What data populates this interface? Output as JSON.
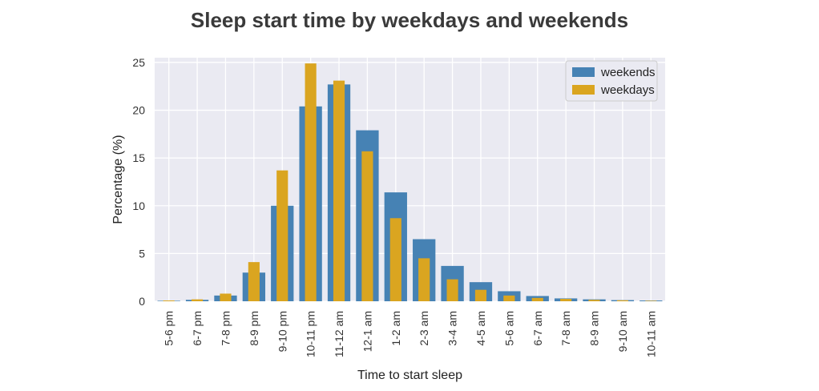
{
  "chart_data": {
    "type": "bar",
    "title": "Sleep start time by weekdays and weekends",
    "xlabel": "Time to start sleep",
    "ylabel": "Percentage (%)",
    "ylim": [
      0,
      25.5
    ],
    "yticks": [
      0,
      5,
      10,
      15,
      20,
      25
    ],
    "grid": true,
    "legend_position": "top-right",
    "categories": [
      "5-6 pm",
      "6-7 pm",
      "7-8 pm",
      "8-9 pm",
      "9-10 pm",
      "10-11 pm",
      "11-12 am",
      "12-1 am",
      "1-2 am",
      "2-3 am",
      "3-4 am",
      "4-5 am",
      "5-6 am",
      "6-7 am",
      "7-8 am",
      "8-9 am",
      "9-10 am",
      "10-11 am"
    ],
    "series": [
      {
        "name": "weekends",
        "color": "#4682b4",
        "values": [
          0.05,
          0.15,
          0.6,
          3.0,
          10.0,
          20.4,
          22.7,
          17.9,
          11.4,
          6.5,
          3.7,
          2.0,
          1.05,
          0.55,
          0.3,
          0.2,
          0.12,
          0.08
        ]
      },
      {
        "name": "weekdays",
        "color": "#daa520",
        "values": [
          0.08,
          0.2,
          0.8,
          4.1,
          13.7,
          24.9,
          23.1,
          15.7,
          8.7,
          4.5,
          2.3,
          1.2,
          0.6,
          0.35,
          0.25,
          0.15,
          0.1,
          0.05
        ]
      }
    ],
    "colors": {
      "plot_background": "#eaeaf2",
      "grid": "#ffffff"
    }
  }
}
